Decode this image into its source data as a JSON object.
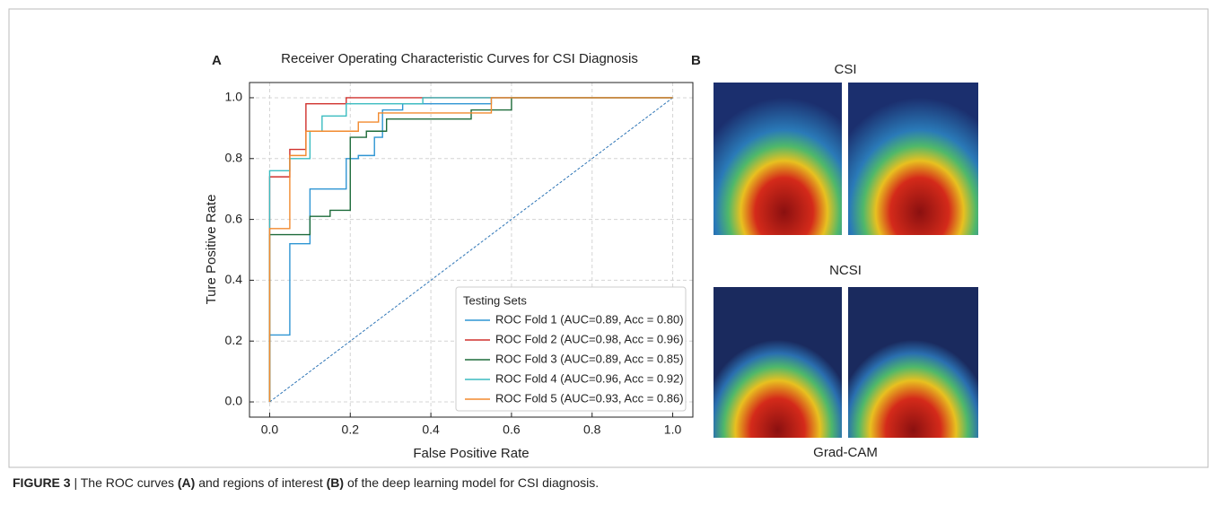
{
  "chart_data": {
    "type": "line",
    "panel_label": "A",
    "title": "Receiver Operating Characteristic Curves for CSI Diagnosis",
    "x_label": "False Positive Rate",
    "y_label": "Ture Positive Rate",
    "xlim": [
      -0.05,
      1.05
    ],
    "ylim": [
      -0.05,
      1.05
    ],
    "xticks": [
      {
        "value": 0,
        "label": "0.0"
      },
      0.2,
      0.4,
      0.6,
      0.8,
      {
        "value": 1,
        "label": "1.0"
      }
    ],
    "yticks": [
      {
        "value": 0,
        "label": "0.0"
      },
      0.2,
      0.4,
      0.6,
      0.8,
      {
        "value": 1,
        "label": "1.0"
      }
    ],
    "grid": true,
    "legend_title": "Testing Sets",
    "legend_position": "lower right",
    "series": [
      {
        "name": "ROC Fold 1 (AUC=0.89, Acc = 0.80)",
        "color": "#2e95d3",
        "x": [
          0,
          0,
          0.05,
          0.05,
          0.1,
          0.1,
          0.19,
          0.19,
          0.22,
          0.22,
          0.26,
          0.26,
          0.28,
          0.28,
          0.33,
          0.33,
          0.55,
          0.55,
          1
        ],
        "y": [
          0,
          0.22,
          0.22,
          0.52,
          0.52,
          0.7,
          0.7,
          0.8,
          0.8,
          0.81,
          0.81,
          0.87,
          0.87,
          0.96,
          0.96,
          0.98,
          0.98,
          1,
          1
        ]
      },
      {
        "name": "ROC Fold 2 (AUC=0.98, Acc = 0.96)",
        "color": "#d0312d",
        "x": [
          0,
          0,
          0.05,
          0.05,
          0.09,
          0.09,
          0.19,
          0.19,
          1
        ],
        "y": [
          0,
          0.74,
          0.74,
          0.83,
          0.83,
          0.98,
          0.98,
          1,
          1
        ]
      },
      {
        "name": "ROC Fold 3 (AUC=0.89, Acc = 0.85)",
        "color": "#1d6b3a",
        "x": [
          0,
          0,
          0.1,
          0.1,
          0.15,
          0.15,
          0.2,
          0.2,
          0.24,
          0.24,
          0.29,
          0.29,
          0.5,
          0.5,
          0.6,
          0.6,
          1
        ],
        "y": [
          0,
          0.55,
          0.55,
          0.61,
          0.61,
          0.63,
          0.63,
          0.87,
          0.87,
          0.89,
          0.89,
          0.93,
          0.93,
          0.96,
          0.96,
          1,
          1
        ]
      },
      {
        "name": "ROC Fold 4 (AUC=0.96, Acc = 0.92)",
        "color": "#3bbcc0",
        "x": [
          0,
          0,
          0.05,
          0.05,
          0.1,
          0.1,
          0.13,
          0.13,
          0.19,
          0.19,
          0.38,
          0.38,
          1
        ],
        "y": [
          0,
          0.76,
          0.76,
          0.8,
          0.8,
          0.89,
          0.89,
          0.94,
          0.94,
          0.98,
          0.98,
          1,
          1
        ]
      },
      {
        "name": "ROC Fold 5 (AUC=0.93, Acc = 0.86)",
        "color": "#f28a2e",
        "x": [
          0,
          0,
          0.05,
          0.05,
          0.09,
          0.09,
          0.22,
          0.22,
          0.27,
          0.27,
          0.55,
          0.55,
          1
        ],
        "y": [
          0,
          0.57,
          0.57,
          0.81,
          0.81,
          0.89,
          0.89,
          0.92,
          0.92,
          0.95,
          0.95,
          1,
          1
        ]
      }
    ],
    "reference_line": {
      "color": "#2e75b6",
      "x": [
        0,
        1
      ],
      "y": [
        0,
        1
      ]
    }
  },
  "panel_b": {
    "label": "B",
    "top_label": "CSI",
    "middle_label": "NCSI",
    "bottom_label": "Grad-CAM"
  },
  "caption": {
    "figure_label": "FIGURE 3",
    "separator": " | ",
    "text_1": "The ROC curves ",
    "ref_a": "(A)",
    "text_2": " and regions of interest ",
    "ref_b": "(B)",
    "text_3": " of the deep learning model for CSI diagnosis."
  }
}
